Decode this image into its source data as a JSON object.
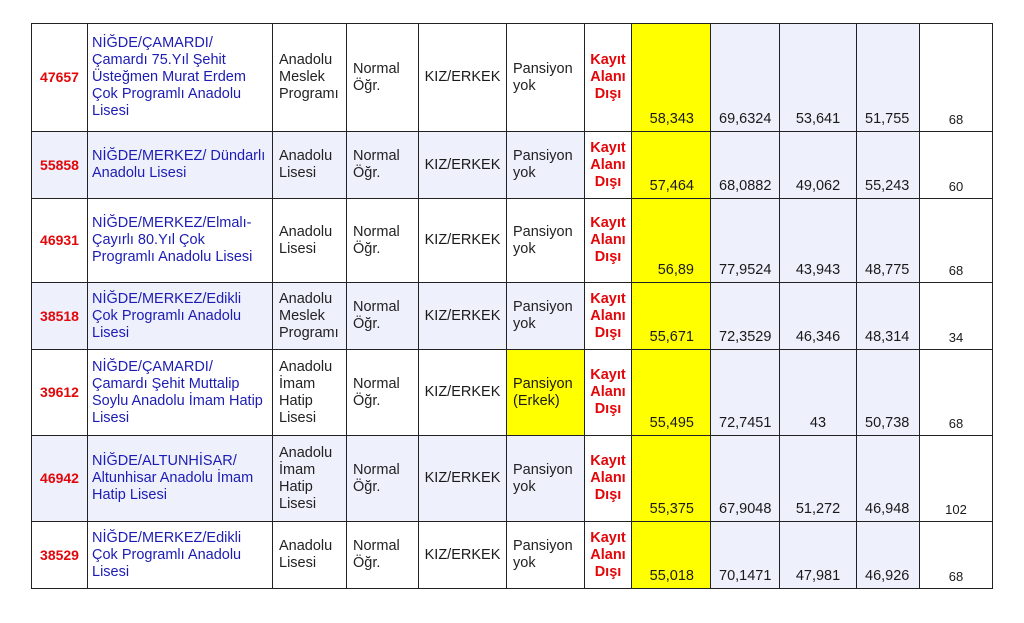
{
  "rows": [
    {
      "code": "47657",
      "name": "NİĞDE/ÇAMARDI/ Çamardı 75.Yıl Şehit Üsteğmen Murat Erdem Çok Programlı Anadolu Lisesi",
      "type": "Anadolu Meslek Programı",
      "edu": "Normal Öğr.",
      "gender": "KIZ/ERKEK",
      "pension": "Pansiyon yok",
      "status": "Kayıt Alanı Dışı",
      "score": "58,343",
      "p1": "69,6324",
      "p2": "53,641",
      "p3": "51,755",
      "count": "68"
    },
    {
      "code": "55858",
      "name": "NİĞDE/MERKEZ/ Dündarlı Anadolu Lisesi",
      "type": "Anadolu Lisesi",
      "edu": "Normal Öğr.",
      "gender": "KIZ/ERKEK",
      "pension": "Pansiyon yok",
      "status": "Kayıt Alanı Dışı",
      "score": "57,464",
      "p1": "68,0882",
      "p2": "49,062",
      "p3": "55,243",
      "count": "60"
    },
    {
      "code": "46931",
      "name": "NİĞDE/MERKEZ/Elmalı-Çayırlı 80.Yıl Çok Programlı Anadolu Lisesi",
      "type": "Anadolu Lisesi",
      "edu": "Normal Öğr.",
      "gender": "KIZ/ERKEK",
      "pension": "Pansiyon yok",
      "status": "Kayıt Alanı Dışı",
      "score": "56,89",
      "p1": "77,9524",
      "p2": "43,943",
      "p3": "48,775",
      "count": "68"
    },
    {
      "code": "38518",
      "name": "NİĞDE/MERKEZ/Edikli Çok Programlı Anadolu Lisesi",
      "type": "Anadolu Meslek Programı",
      "edu": "Normal Öğr.",
      "gender": "KIZ/ERKEK",
      "pension": "Pansiyon yok",
      "status": "Kayıt Alanı Dışı",
      "score": "55,671",
      "p1": "72,3529",
      "p2": "46,346",
      "p3": "48,314",
      "count": "34"
    },
    {
      "code": "39612",
      "name": "NİĞDE/ÇAMARDI/ Çamardı Şehit Muttalip Soylu Anadolu İmam Hatip Lisesi",
      "type": "Anadolu İmam Hatip Lisesi",
      "edu": "Normal Öğr.",
      "gender": "KIZ/ERKEK",
      "pension": "Pansiyon (Erkek)",
      "status": "Kayıt Alanı Dışı",
      "score": "55,495",
      "p1": "72,7451",
      "p2": "43",
      "p3": "50,738",
      "count": "68",
      "pension_highlight": true
    },
    {
      "code": "46942",
      "name": "NİĞDE/ALTUNHİSAR/ Altunhisar Anadolu İmam Hatip Lisesi",
      "type": "Anadolu İmam Hatip Lisesi",
      "edu": "Normal Öğr.",
      "gender": "KIZ/ERKEK",
      "pension": "Pansiyon yok",
      "status": "Kayıt Alanı Dışı",
      "score": "55,375",
      "p1": "67,9048",
      "p2": "51,272",
      "p3": "46,948",
      "count": "102"
    },
    {
      "code": "38529",
      "name": "NİĞDE/MERKEZ/Edikli Çok Programlı Anadolu Lisesi",
      "type": "Anadolu Lisesi",
      "edu": "Normal Öğr.",
      "gender": "KIZ/ERKEK",
      "pension": "Pansiyon yok",
      "status": "Kayıt Alanı Dışı",
      "score": "55,018",
      "p1": "70,1471",
      "p2": "47,981",
      "p3": "46,926",
      "count": "68"
    }
  ],
  "colors": {
    "code": "#e2070a",
    "name": "#1c1cb4",
    "score_highlight": "#ffff00",
    "alt_row": "#eef0fb"
  }
}
